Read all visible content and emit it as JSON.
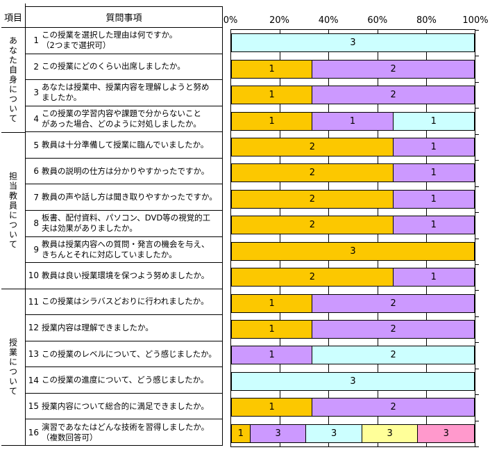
{
  "table": {
    "header": {
      "item": "項目",
      "question": "質問事項"
    },
    "groups": [
      {
        "label": "あなた自身について",
        "rowspan": 4
      },
      {
        "label": "担当教員について",
        "rowspan": 6
      },
      {
        "label": "授業について",
        "rowspan": 6
      }
    ],
    "questions": [
      {
        "no": "1",
        "text": "この授業を選択した理由は何ですか。\n（2つまで選択可）"
      },
      {
        "no": "2",
        "text": "この授業にどのくらい出席しましたか。"
      },
      {
        "no": "3",
        "text": "あなたは授業中、授業内容を理解しようと努め\nましたか。"
      },
      {
        "no": "4",
        "text": "この授業の学習内容や課題で分からないこと\nがあった場合、どのように対処しましたか。"
      },
      {
        "no": "5",
        "text": "教員は十分準備して授業に臨んでいましたか。"
      },
      {
        "no": "6",
        "text": "教員の説明の仕方は分かりやすかったですか。"
      },
      {
        "no": "7",
        "text": "教員の声や話し方は聞き取りやすかったですか。"
      },
      {
        "no": "8",
        "text": "板書、配付資料、パソコン、DVD等の視覚的工\n夫は効果がありましたか。"
      },
      {
        "no": "9",
        "text": "教員は授業内容への質問・発言の機会を与え、\nきちんとそれに対応していましたか。"
      },
      {
        "no": "10",
        "text": "教員は良い授業環境を保つよう努めましたか。"
      },
      {
        "no": "11",
        "text": "この授業はシラバスどおりに行われましたか。"
      },
      {
        "no": "12",
        "text": "授業内容は理解できましたか。"
      },
      {
        "no": "13",
        "text": "この授業のレベルについて、どう感じましたか。"
      },
      {
        "no": "14",
        "text": "この授業の進度について、どう感じましたか。"
      },
      {
        "no": "15",
        "text": "授業内容について総合的に満足できましたか。"
      },
      {
        "no": "16",
        "text": "演習であなたはどんな技術を習得しましたか。\n（複数回答可）"
      }
    ]
  },
  "chart": {
    "axis_labels": [
      "0%",
      "20%",
      "40%",
      "60%",
      "80%",
      "100%"
    ]
  },
  "chart_data": {
    "type": "bar",
    "variant": "horizontal-stacked-100percent",
    "x_axis": {
      "min": 0,
      "max": 100,
      "tick_labels": [
        "0%",
        "20%",
        "40%",
        "60%",
        "80%",
        "100%"
      ],
      "gridlines_percent": [
        20,
        40,
        60,
        80
      ],
      "axis_position": "top"
    },
    "categories": [
      "1",
      "2",
      "3",
      "4",
      "5",
      "6",
      "7",
      "8",
      "9",
      "10",
      "11",
      "12",
      "13",
      "14",
      "15",
      "16"
    ],
    "choice_colors": {
      "1": "#FCC800",
      "2": "#CC99FF",
      "3": "#CCFFFF",
      "4": "#FFFF99",
      "5": "#FF99CC"
    },
    "rows": [
      {
        "q": 1,
        "segments": [
          {
            "choice": 3,
            "count": 3
          }
        ]
      },
      {
        "q": 2,
        "segments": [
          {
            "choice": 1,
            "count": 1
          },
          {
            "choice": 2,
            "count": 2
          }
        ]
      },
      {
        "q": 3,
        "segments": [
          {
            "choice": 1,
            "count": 1
          },
          {
            "choice": 2,
            "count": 2
          }
        ]
      },
      {
        "q": 4,
        "segments": [
          {
            "choice": 1,
            "count": 1
          },
          {
            "choice": 2,
            "count": 1
          },
          {
            "choice": 3,
            "count": 1
          }
        ]
      },
      {
        "q": 5,
        "segments": [
          {
            "choice": 1,
            "count": 2
          },
          {
            "choice": 2,
            "count": 1
          }
        ]
      },
      {
        "q": 6,
        "segments": [
          {
            "choice": 1,
            "count": 2
          },
          {
            "choice": 2,
            "count": 1
          }
        ]
      },
      {
        "q": 7,
        "segments": [
          {
            "choice": 1,
            "count": 2
          },
          {
            "choice": 2,
            "count": 1
          }
        ]
      },
      {
        "q": 8,
        "segments": [
          {
            "choice": 1,
            "count": 2
          },
          {
            "choice": 2,
            "count": 1
          }
        ]
      },
      {
        "q": 9,
        "segments": [
          {
            "choice": 1,
            "count": 3
          }
        ]
      },
      {
        "q": 10,
        "segments": [
          {
            "choice": 1,
            "count": 2
          },
          {
            "choice": 2,
            "count": 1
          }
        ]
      },
      {
        "q": 11,
        "segments": [
          {
            "choice": 1,
            "count": 1
          },
          {
            "choice": 2,
            "count": 2
          }
        ]
      },
      {
        "q": 12,
        "segments": [
          {
            "choice": 1,
            "count": 1
          },
          {
            "choice": 2,
            "count": 2
          }
        ]
      },
      {
        "q": 13,
        "segments": [
          {
            "choice": 2,
            "count": 1
          },
          {
            "choice": 3,
            "count": 2
          }
        ]
      },
      {
        "q": 14,
        "segments": [
          {
            "choice": 3,
            "count": 3
          }
        ]
      },
      {
        "q": 15,
        "segments": [
          {
            "choice": 1,
            "count": 1
          },
          {
            "choice": 2,
            "count": 2
          }
        ]
      },
      {
        "q": 16,
        "segments": [
          {
            "choice": 1,
            "count": 1
          },
          {
            "choice": 2,
            "count": 3
          },
          {
            "choice": 3,
            "count": 3
          },
          {
            "choice": 4,
            "count": 3
          },
          {
            "choice": 5,
            "count": 3
          }
        ]
      }
    ]
  }
}
